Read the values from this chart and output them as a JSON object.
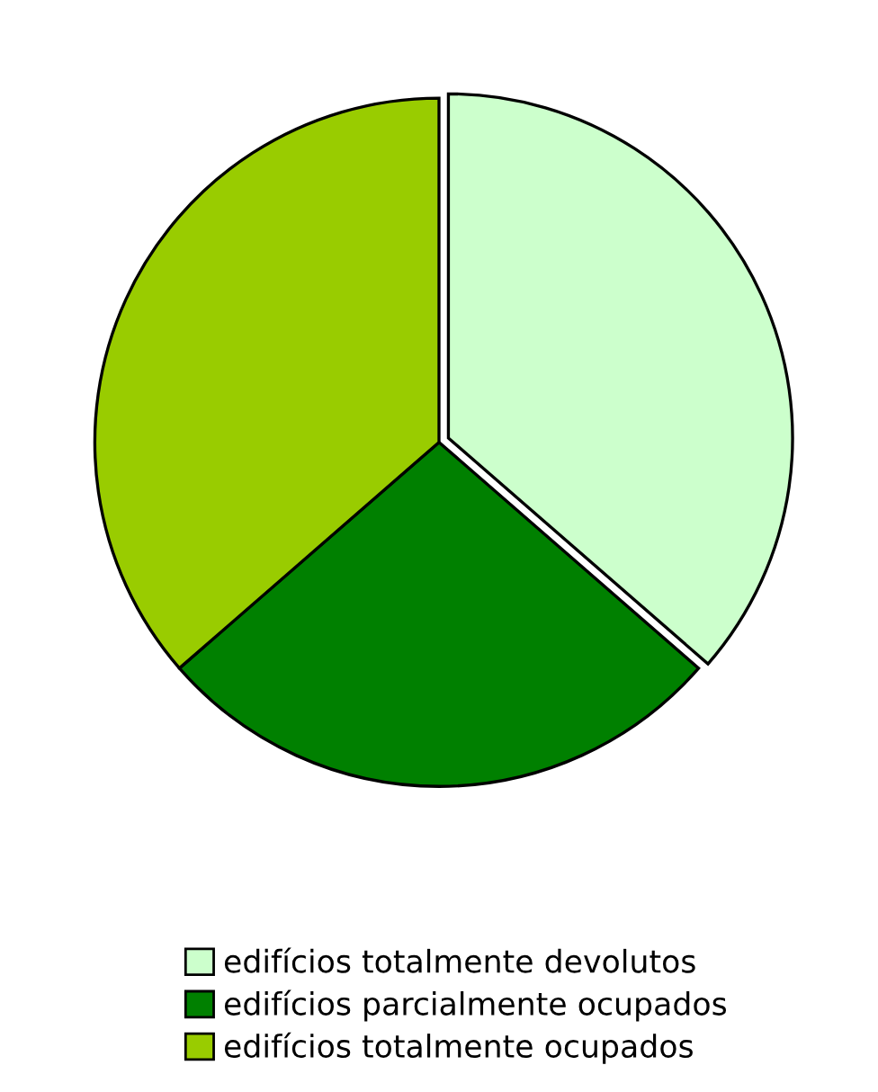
{
  "chart_data": {
    "type": "pie",
    "categories": [
      "edifícios totalmente devolutos",
      "edifícios parcialmente ocupados",
      "edifícios totalmente ocupados"
    ],
    "values": [
      36.4,
      27.2,
      36.4
    ],
    "colors": [
      "#ccffcc",
      "#008000",
      "#99cc00"
    ],
    "legend": "bottom"
  }
}
